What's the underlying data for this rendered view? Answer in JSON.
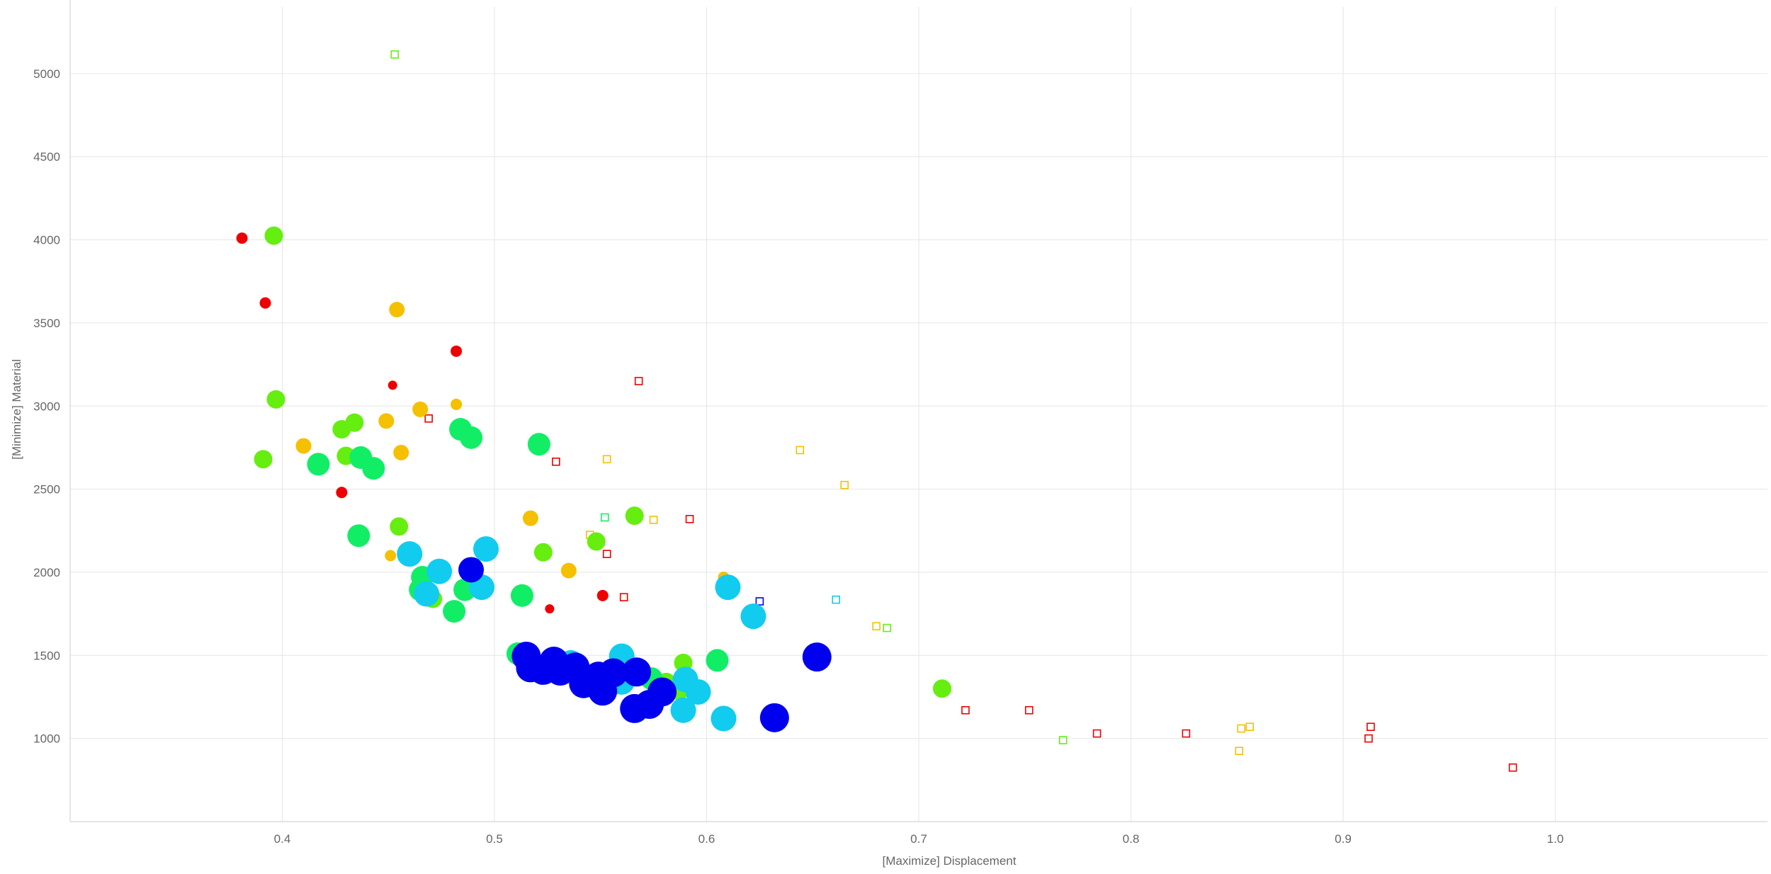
{
  "chart_data": {
    "type": "scatter",
    "xlabel": "[Maximize] Displacement",
    "ylabel": "[Minimize] Material",
    "xlim": [
      0.3,
      1.1
    ],
    "ylim": [
      500,
      5400
    ],
    "x_ticks": [
      0.4,
      0.5,
      0.6,
      0.7,
      0.8,
      0.9,
      1.0
    ],
    "x_tick_labels": [
      "0.4",
      "0.5",
      "0.6",
      "0.7",
      "0.8",
      "0.9",
      "1.0"
    ],
    "y_ticks": [
      1000,
      1500,
      2000,
      2500,
      3000,
      3500,
      4000,
      4500,
      5000
    ],
    "y_tick_labels": [
      "1000",
      "1500",
      "2000",
      "2500",
      "3000",
      "3500",
      "4000",
      "4500",
      "5000"
    ],
    "grid": true,
    "legend": "none",
    "colors": {
      "red": "#ee0000",
      "orange": "#f5c000",
      "lime": "#66ee11",
      "green": "#11ee66",
      "cyan": "#11ccee",
      "blue": "#0000ee"
    },
    "filled_points": [
      {
        "x": 0.381,
        "y": 4010,
        "color": "red",
        "size": "xs"
      },
      {
        "x": 0.392,
        "y": 3620,
        "color": "red",
        "size": "xs"
      },
      {
        "x": 0.482,
        "y": 3330,
        "color": "red",
        "size": "xs"
      },
      {
        "x": 0.452,
        "y": 3125,
        "color": "red",
        "size": "xxs"
      },
      {
        "x": 0.428,
        "y": 2480,
        "color": "red",
        "size": "xs"
      },
      {
        "x": 0.526,
        "y": 1780,
        "color": "red",
        "size": "xxs"
      },
      {
        "x": 0.551,
        "y": 1860,
        "color": "red",
        "size": "xs"
      },
      {
        "x": 0.454,
        "y": 3580,
        "color": "orange",
        "size": "s"
      },
      {
        "x": 0.465,
        "y": 2980,
        "color": "orange",
        "size": "s"
      },
      {
        "x": 0.482,
        "y": 3010,
        "color": "orange",
        "size": "xs"
      },
      {
        "x": 0.449,
        "y": 2910,
        "color": "orange",
        "size": "s"
      },
      {
        "x": 0.41,
        "y": 2760,
        "color": "orange",
        "size": "s"
      },
      {
        "x": 0.456,
        "y": 2720,
        "color": "orange",
        "size": "s"
      },
      {
        "x": 0.517,
        "y": 2325,
        "color": "orange",
        "size": "s"
      },
      {
        "x": 0.451,
        "y": 2100,
        "color": "orange",
        "size": "xs"
      },
      {
        "x": 0.535,
        "y": 2010,
        "color": "orange",
        "size": "s"
      },
      {
        "x": 0.608,
        "y": 1970,
        "color": "orange",
        "size": "xs"
      },
      {
        "x": 0.396,
        "y": 4025,
        "color": "lime",
        "size": "m"
      },
      {
        "x": 0.397,
        "y": 3040,
        "color": "lime",
        "size": "m"
      },
      {
        "x": 0.391,
        "y": 2680,
        "color": "lime",
        "size": "m"
      },
      {
        "x": 0.428,
        "y": 2860,
        "color": "lime",
        "size": "m"
      },
      {
        "x": 0.434,
        "y": 2900,
        "color": "lime",
        "size": "m"
      },
      {
        "x": 0.43,
        "y": 2700,
        "color": "lime",
        "size": "m"
      },
      {
        "x": 0.455,
        "y": 2275,
        "color": "lime",
        "size": "m"
      },
      {
        "x": 0.523,
        "y": 2120,
        "color": "lime",
        "size": "m"
      },
      {
        "x": 0.548,
        "y": 2185,
        "color": "lime",
        "size": "m"
      },
      {
        "x": 0.566,
        "y": 2340,
        "color": "lime",
        "size": "m"
      },
      {
        "x": 0.471,
        "y": 1840,
        "color": "lime",
        "size": "m"
      },
      {
        "x": 0.589,
        "y": 1455,
        "color": "lime",
        "size": "m"
      },
      {
        "x": 0.711,
        "y": 1300,
        "color": "lime",
        "size": "m"
      },
      {
        "x": 0.581,
        "y": 1340,
        "color": "lime",
        "size": "m"
      },
      {
        "x": 0.587,
        "y": 1285,
        "color": "lime",
        "size": "m"
      },
      {
        "x": 0.484,
        "y": 2860,
        "color": "green",
        "size": "l"
      },
      {
        "x": 0.489,
        "y": 2810,
        "color": "green",
        "size": "l"
      },
      {
        "x": 0.417,
        "y": 2650,
        "color": "green",
        "size": "l"
      },
      {
        "x": 0.437,
        "y": 2690,
        "color": "green",
        "size": "l"
      },
      {
        "x": 0.443,
        "y": 2625,
        "color": "green",
        "size": "l"
      },
      {
        "x": 0.521,
        "y": 2770,
        "color": "green",
        "size": "l"
      },
      {
        "x": 0.436,
        "y": 2220,
        "color": "green",
        "size": "l"
      },
      {
        "x": 0.466,
        "y": 1970,
        "color": "green",
        "size": "l"
      },
      {
        "x": 0.465,
        "y": 1895,
        "color": "green",
        "size": "l"
      },
      {
        "x": 0.486,
        "y": 1895,
        "color": "green",
        "size": "l"
      },
      {
        "x": 0.481,
        "y": 1765,
        "color": "green",
        "size": "l"
      },
      {
        "x": 0.513,
        "y": 1860,
        "color": "green",
        "size": "l"
      },
      {
        "x": 0.511,
        "y": 1510,
        "color": "green",
        "size": "l"
      },
      {
        "x": 0.605,
        "y": 1470,
        "color": "green",
        "size": "l"
      },
      {
        "x": 0.574,
        "y": 1360,
        "color": "green",
        "size": "l"
      },
      {
        "x": 0.46,
        "y": 2110,
        "color": "cyan",
        "size": "xl"
      },
      {
        "x": 0.474,
        "y": 2005,
        "color": "cyan",
        "size": "xl"
      },
      {
        "x": 0.496,
        "y": 2140,
        "color": "cyan",
        "size": "xl"
      },
      {
        "x": 0.494,
        "y": 1910,
        "color": "cyan",
        "size": "xl"
      },
      {
        "x": 0.468,
        "y": 1870,
        "color": "cyan",
        "size": "xl"
      },
      {
        "x": 0.61,
        "y": 1910,
        "color": "cyan",
        "size": "xl"
      },
      {
        "x": 0.622,
        "y": 1735,
        "color": "cyan",
        "size": "xl"
      },
      {
        "x": 0.536,
        "y": 1455,
        "color": "cyan",
        "size": "xl"
      },
      {
        "x": 0.56,
        "y": 1495,
        "color": "cyan",
        "size": "xl"
      },
      {
        "x": 0.56,
        "y": 1340,
        "color": "cyan",
        "size": "xl"
      },
      {
        "x": 0.59,
        "y": 1355,
        "color": "cyan",
        "size": "xl"
      },
      {
        "x": 0.596,
        "y": 1280,
        "color": "cyan",
        "size": "xl"
      },
      {
        "x": 0.589,
        "y": 1170,
        "color": "cyan",
        "size": "xl"
      },
      {
        "x": 0.608,
        "y": 1120,
        "color": "cyan",
        "size": "xl"
      },
      {
        "x": 0.489,
        "y": 2015,
        "color": "blue",
        "size": "xl"
      },
      {
        "x": 0.515,
        "y": 1495,
        "color": "blue",
        "size": "xxl"
      },
      {
        "x": 0.517,
        "y": 1425,
        "color": "blue",
        "size": "xxl"
      },
      {
        "x": 0.523,
        "y": 1410,
        "color": "blue",
        "size": "xxl"
      },
      {
        "x": 0.528,
        "y": 1465,
        "color": "blue",
        "size": "xxl"
      },
      {
        "x": 0.531,
        "y": 1405,
        "color": "blue",
        "size": "xxl"
      },
      {
        "x": 0.538,
        "y": 1430,
        "color": "blue",
        "size": "xxl"
      },
      {
        "x": 0.542,
        "y": 1330,
        "color": "blue",
        "size": "xxl"
      },
      {
        "x": 0.549,
        "y": 1375,
        "color": "blue",
        "size": "xxl"
      },
      {
        "x": 0.551,
        "y": 1285,
        "color": "blue",
        "size": "xxl"
      },
      {
        "x": 0.556,
        "y": 1395,
        "color": "blue",
        "size": "xxl"
      },
      {
        "x": 0.567,
        "y": 1400,
        "color": "blue",
        "size": "xxl"
      },
      {
        "x": 0.566,
        "y": 1180,
        "color": "blue",
        "size": "xxl"
      },
      {
        "x": 0.573,
        "y": 1205,
        "color": "blue",
        "size": "xxl"
      },
      {
        "x": 0.579,
        "y": 1280,
        "color": "blue",
        "size": "xxl"
      },
      {
        "x": 0.632,
        "y": 1125,
        "color": "blue",
        "size": "xxl"
      },
      {
        "x": 0.652,
        "y": 1490,
        "color": "blue",
        "size": "xxl"
      }
    ],
    "hollow_points": [
      {
        "x": 0.453,
        "y": 5115,
        "color": "lime"
      },
      {
        "x": 0.568,
        "y": 3150,
        "color": "red"
      },
      {
        "x": 0.469,
        "y": 2925,
        "color": "red"
      },
      {
        "x": 0.529,
        "y": 2665,
        "color": "red"
      },
      {
        "x": 0.553,
        "y": 2680,
        "color": "orange"
      },
      {
        "x": 0.644,
        "y": 2735,
        "color": "orange"
      },
      {
        "x": 0.665,
        "y": 2525,
        "color": "orange"
      },
      {
        "x": 0.552,
        "y": 2330,
        "color": "green"
      },
      {
        "x": 0.575,
        "y": 2315,
        "color": "orange"
      },
      {
        "x": 0.592,
        "y": 2320,
        "color": "red"
      },
      {
        "x": 0.545,
        "y": 2225,
        "color": "orange"
      },
      {
        "x": 0.553,
        "y": 2110,
        "color": "red"
      },
      {
        "x": 0.561,
        "y": 1850,
        "color": "red"
      },
      {
        "x": 0.625,
        "y": 1825,
        "color": "blue"
      },
      {
        "x": 0.661,
        "y": 1835,
        "color": "cyan"
      },
      {
        "x": 0.68,
        "y": 1675,
        "color": "orange"
      },
      {
        "x": 0.685,
        "y": 1665,
        "color": "lime"
      },
      {
        "x": 0.722,
        "y": 1170,
        "color": "red"
      },
      {
        "x": 0.752,
        "y": 1170,
        "color": "red"
      },
      {
        "x": 0.768,
        "y": 990,
        "color": "lime"
      },
      {
        "x": 0.784,
        "y": 1030,
        "color": "red"
      },
      {
        "x": 0.826,
        "y": 1030,
        "color": "red"
      },
      {
        "x": 0.851,
        "y": 925,
        "color": "orange"
      },
      {
        "x": 0.852,
        "y": 1060,
        "color": "orange"
      },
      {
        "x": 0.856,
        "y": 1070,
        "color": "orange"
      },
      {
        "x": 0.912,
        "y": 1000,
        "color": "red"
      },
      {
        "x": 0.913,
        "y": 1070,
        "color": "red"
      },
      {
        "x": 0.98,
        "y": 825,
        "color": "red"
      }
    ]
  }
}
